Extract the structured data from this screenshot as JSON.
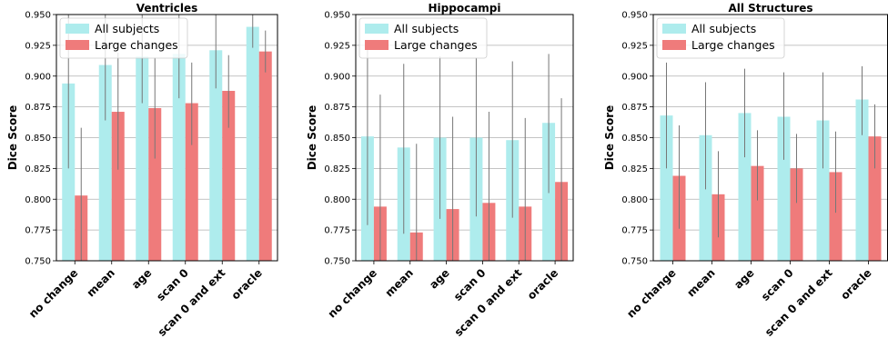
{
  "chart_data": [
    {
      "type": "bar",
      "title": "Ventricles",
      "ylabel": "Dice Score",
      "xlabel": "",
      "ylim": [
        0.75,
        0.95
      ],
      "yticks": [
        "0.750",
        "0.775",
        "0.800",
        "0.825",
        "0.850",
        "0.875",
        "0.900",
        "0.925",
        "0.950"
      ],
      "grid": "y",
      "legend": "top-left",
      "categories": [
        "no change",
        "mean",
        "age",
        "scan 0",
        "scan 0 and ext",
        "oracle"
      ],
      "series": [
        {
          "name": "All subjects",
          "color": "#aeeced",
          "values": [
            0.894,
            0.909,
            0.916,
            0.918,
            0.921,
            0.94
          ],
          "err_low": [
            0.825,
            0.864,
            0.878,
            0.882,
            0.89,
            0.923
          ],
          "err_high": [
            0.95,
            0.95,
            0.95,
            0.95,
            0.95,
            0.95
          ]
        },
        {
          "name": "Large changes",
          "color": "#ef7b7b",
          "values": [
            0.803,
            0.871,
            0.874,
            0.878,
            0.888,
            0.92
          ],
          "err_low": [
            0.75,
            0.824,
            0.833,
            0.844,
            0.858,
            0.903
          ],
          "err_high": [
            0.858,
            0.919,
            0.915,
            0.911,
            0.917,
            0.937
          ]
        }
      ]
    },
    {
      "type": "bar",
      "title": "Hippocampi",
      "ylabel": "Dice Score",
      "xlabel": "",
      "ylim": [
        0.75,
        0.95
      ],
      "yticks": [
        "0.750",
        "0.775",
        "0.800",
        "0.825",
        "0.850",
        "0.875",
        "0.900",
        "0.925",
        "0.950"
      ],
      "grid": "y",
      "legend": "top-left",
      "categories": [
        "no change",
        "mean",
        "age",
        "scan 0",
        "scan 0 and ext",
        "oracle"
      ],
      "series": [
        {
          "name": "All subjects",
          "color": "#aeeced",
          "values": [
            0.851,
            0.842,
            0.85,
            0.85,
            0.848,
            0.862
          ],
          "err_low": [
            0.779,
            0.772,
            0.784,
            0.786,
            0.785,
            0.805
          ],
          "err_high": [
            0.922,
            0.91,
            0.916,
            0.915,
            0.912,
            0.918
          ]
        },
        {
          "name": "Large changes",
          "color": "#ef7b7b",
          "values": [
            0.794,
            0.773,
            0.792,
            0.797,
            0.794,
            0.814
          ],
          "err_low": [
            0.75,
            0.75,
            0.75,
            0.75,
            0.75,
            0.75
          ],
          "err_high": [
            0.885,
            0.845,
            0.867,
            0.871,
            0.866,
            0.882
          ]
        }
      ]
    },
    {
      "type": "bar",
      "title": "All Structures",
      "ylabel": "Dice Score",
      "xlabel": "",
      "ylim": [
        0.75,
        0.95
      ],
      "yticks": [
        "0.750",
        "0.775",
        "0.800",
        "0.825",
        "0.850",
        "0.875",
        "0.900",
        "0.925",
        "0.950"
      ],
      "grid": "y",
      "legend": "top-left",
      "categories": [
        "no change",
        "mean",
        "age",
        "scan 0",
        "scan 0 and ext",
        "oracle"
      ],
      "series": [
        {
          "name": "All subjects",
          "color": "#aeeced",
          "values": [
            0.868,
            0.852,
            0.87,
            0.867,
            0.864,
            0.881
          ],
          "err_low": [
            0.825,
            0.808,
            0.834,
            0.832,
            0.825,
            0.852
          ],
          "err_high": [
            0.911,
            0.895,
            0.906,
            0.903,
            0.903,
            0.908
          ]
        },
        {
          "name": "Large changes",
          "color": "#ef7b7b",
          "values": [
            0.819,
            0.804,
            0.827,
            0.825,
            0.822,
            0.851
          ],
          "err_low": [
            0.776,
            0.769,
            0.799,
            0.797,
            0.789,
            0.825
          ],
          "err_high": [
            0.86,
            0.839,
            0.856,
            0.853,
            0.855,
            0.877
          ]
        }
      ]
    }
  ]
}
